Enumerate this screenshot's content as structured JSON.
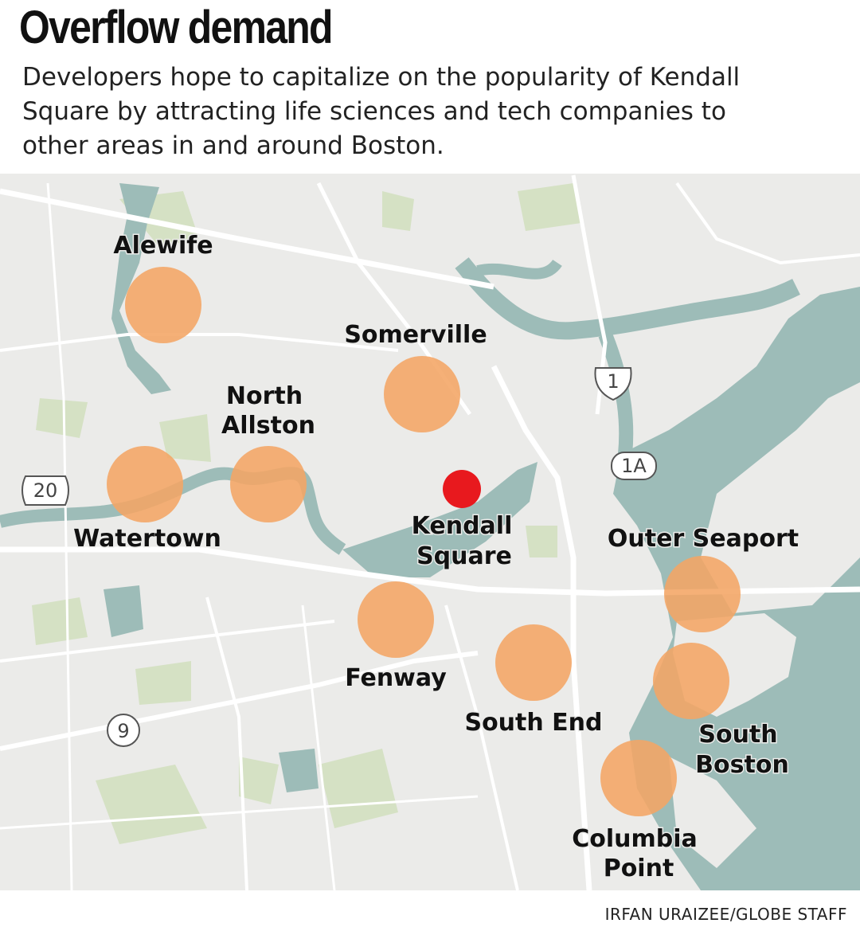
{
  "header": {
    "title": "Overflow demand",
    "subtitle": [
      "Developers hope to capitalize on the popularity of Kendall",
      "Square by attracting life sciences and tech companies to",
      "other areas in and around Boston."
    ]
  },
  "map": {
    "places": [
      {
        "lines": [
          "Alewife"
        ]
      },
      {
        "lines": [
          "Somerville"
        ]
      },
      {
        "lines": [
          "North",
          "Allston"
        ]
      },
      {
        "lines": [
          "Watertown"
        ]
      },
      {
        "lines": [
          "Kendall",
          "Square"
        ]
      },
      {
        "lines": [
          "Outer Seaport"
        ]
      },
      {
        "lines": [
          "Fenway"
        ]
      },
      {
        "lines": [
          "South End"
        ]
      },
      {
        "lines": [
          "South",
          "Boston"
        ]
      },
      {
        "lines": [
          "Columbia",
          "Point"
        ]
      }
    ],
    "highways": [
      "20",
      "1",
      "1A",
      "9"
    ]
  },
  "credit": "IRFAN URAIZEE/GLOBE STAFF"
}
